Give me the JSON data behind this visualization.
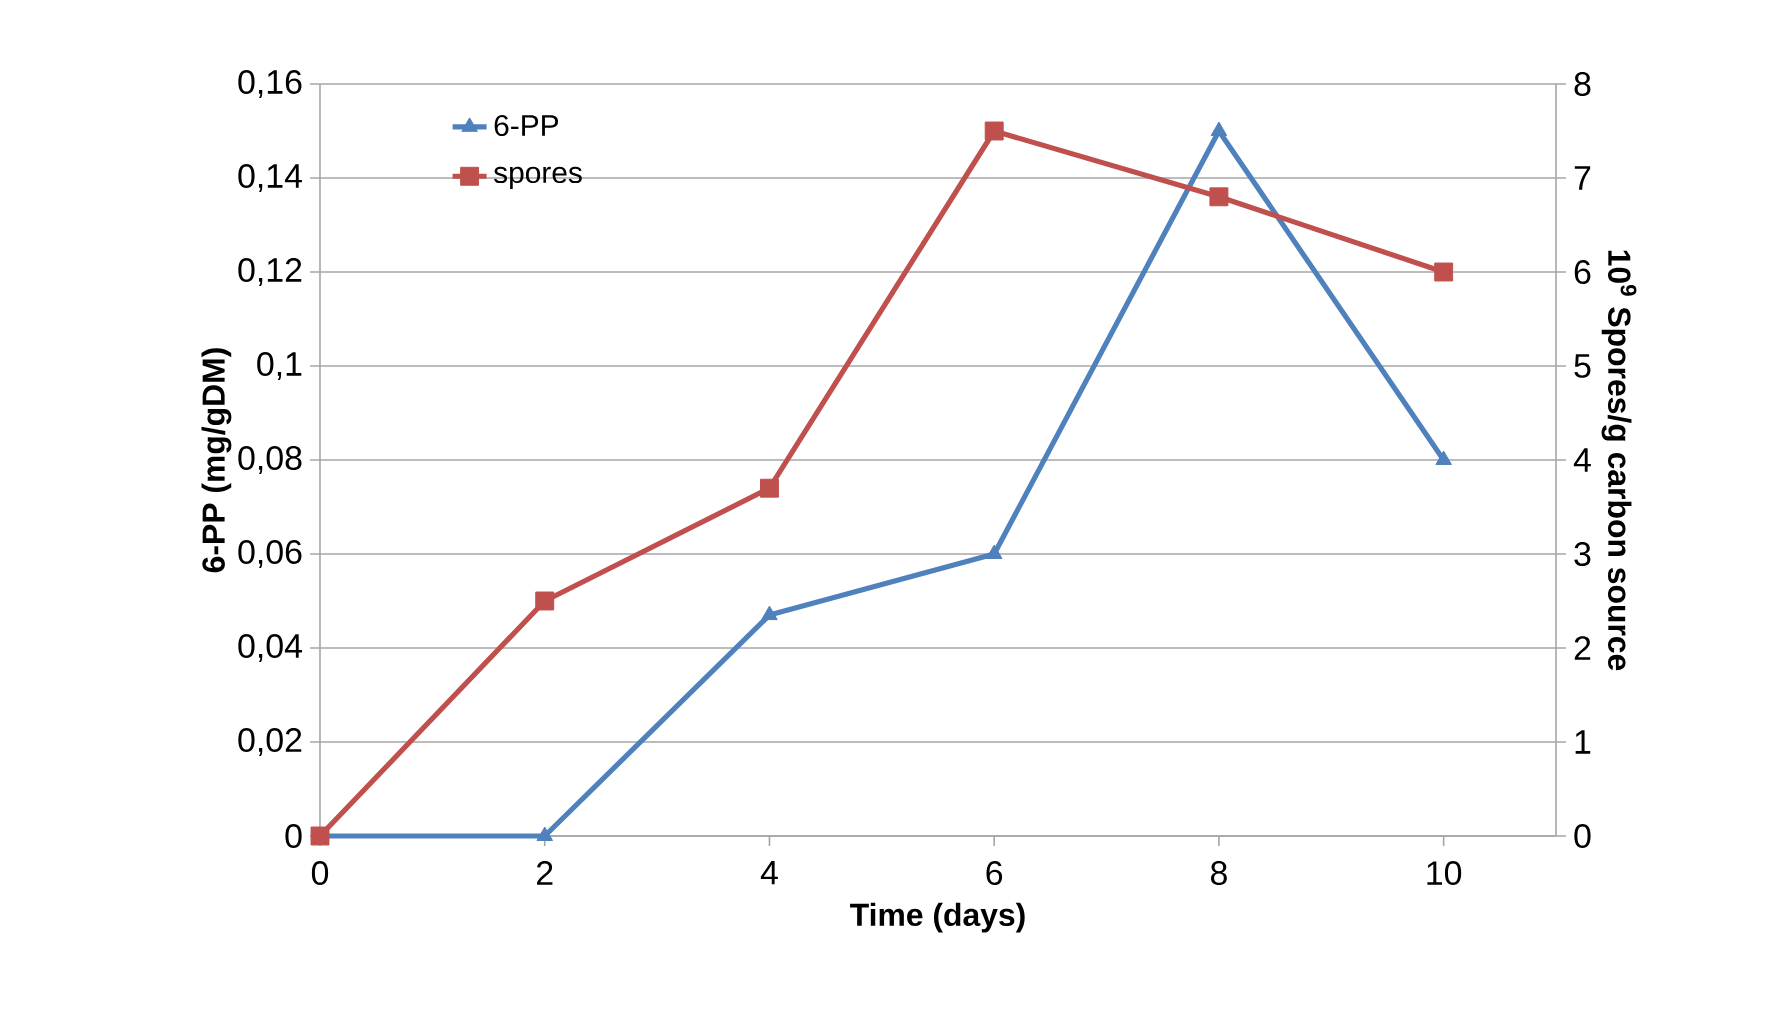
{
  "chart_data": {
    "type": "line",
    "xlabel": "Time (days)",
    "ylabel": "6-PP (mg/gDM)",
    "y2label": "10$^{9}$ Spores/g carbon source",
    "x": [
      0,
      2,
      4,
      6,
      8,
      10
    ],
    "series": [
      {
        "name": "6-PP",
        "color": "#4f81bd",
        "marker": "triangle",
        "values": [
          0,
          0,
          0.047,
          0.06,
          0.15,
          0.08
        ]
      },
      {
        "name": "spores",
        "color": "#c0504d",
        "marker": "square",
        "axis": "y2",
        "values": [
          0,
          2.5,
          3.7,
          7.5,
          6.8,
          6.0
        ]
      }
    ],
    "xlim": [
      0,
      11
    ],
    "xticks": [
      0,
      2,
      4,
      6,
      8,
      10
    ],
    "ylim": [
      0,
      0.16
    ],
    "yticks": [
      0,
      {
        "value": 0.02,
        "label": "0,02"
      },
      {
        "value": 0.04,
        "label": "0,04"
      },
      {
        "value": 0.06,
        "label": "0,06"
      },
      {
        "value": 0.08,
        "label": "0,08"
      },
      {
        "value": 0.1,
        "label": "0,1"
      },
      {
        "value": 0.12,
        "label": "0,12"
      },
      {
        "value": 0.14,
        "label": "0,14"
      },
      {
        "value": 0.16,
        "label": "0,16"
      }
    ],
    "y2lim": [
      0,
      8
    ],
    "y2ticks": [
      0,
      1,
      2,
      3,
      4,
      5,
      6,
      7,
      8
    ],
    "grid": "y",
    "legend": "top left"
  }
}
